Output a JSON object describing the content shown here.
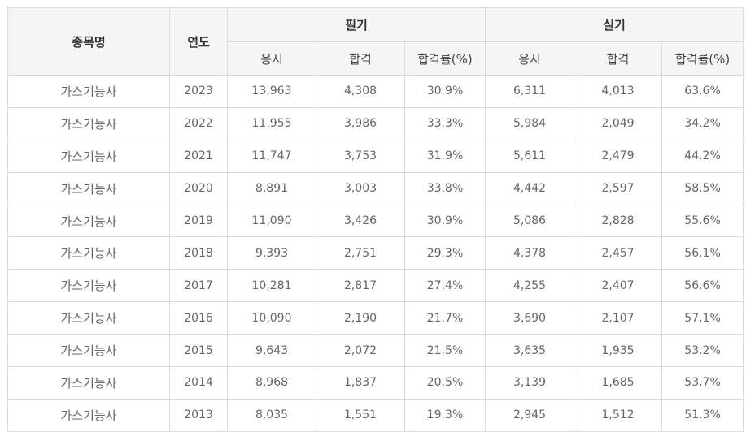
{
  "table": {
    "headers": {
      "name": "종목명",
      "year": "연도",
      "written_group": "필기",
      "practical_group": "실기",
      "sub": [
        "응시",
        "합격",
        "합격률(%)",
        "응시",
        "합격",
        "합격률(%)"
      ]
    },
    "rows": [
      [
        "가스기능사",
        "2023",
        "13,963",
        "4,308",
        "30.9%",
        "6,311",
        "4,013",
        "63.6%"
      ],
      [
        "가스기능사",
        "2022",
        "11,955",
        "3,986",
        "33.3%",
        "5,984",
        "2,049",
        "34.2%"
      ],
      [
        "가스기능사",
        "2021",
        "11,747",
        "3,753",
        "31.9%",
        "5,611",
        "2,479",
        "44.2%"
      ],
      [
        "가스기능사",
        "2020",
        "8,891",
        "3,003",
        "33.8%",
        "4,442",
        "2,597",
        "58.5%"
      ],
      [
        "가스기능사",
        "2019",
        "11,090",
        "3,426",
        "30.9%",
        "5,086",
        "2,828",
        "55.6%"
      ],
      [
        "가스기능사",
        "2018",
        "9,393",
        "2,751",
        "29.3%",
        "4,378",
        "2,457",
        "56.1%"
      ],
      [
        "가스기능사",
        "2017",
        "10,281",
        "2,817",
        "27.4%",
        "4,255",
        "2,407",
        "56.6%"
      ],
      [
        "가스기능사",
        "2016",
        "10,090",
        "2,190",
        "21.7%",
        "3,690",
        "2,107",
        "57.1%"
      ],
      [
        "가스기능사",
        "2015",
        "9,643",
        "2,072",
        "21.5%",
        "3,635",
        "1,935",
        "53.2%"
      ],
      [
        "가스기능사",
        "2014",
        "8,968",
        "1,837",
        "20.5%",
        "3,139",
        "1,685",
        "53.7%"
      ],
      [
        "가스기능사",
        "2013",
        "8,035",
        "1,551",
        "19.3%",
        "2,945",
        "1,512",
        "51.3%"
      ]
    ]
  }
}
